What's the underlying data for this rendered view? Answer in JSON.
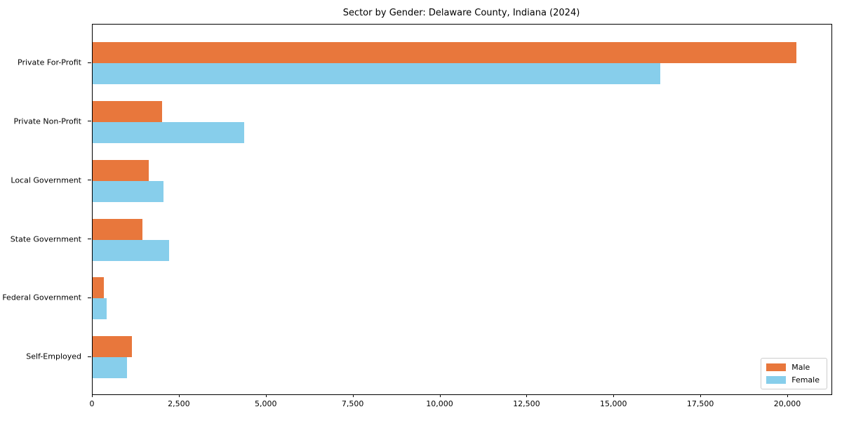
{
  "chart_data": {
    "type": "bar",
    "orientation": "horizontal",
    "title": "Sector by Gender: Delaware County, Indiana (2024)",
    "categories": [
      "Private For-Profit",
      "Private Non-Profit",
      "Local Government",
      "State Government",
      "Federal Government",
      "Self-Employed"
    ],
    "series": [
      {
        "name": "Male",
        "color": "#E8773C",
        "values": [
          20250,
          2000,
          1610,
          1430,
          320,
          1140
        ]
      },
      {
        "name": "Female",
        "color": "#87CEEB",
        "values": [
          16330,
          4350,
          2030,
          2200,
          400,
          980
        ]
      }
    ],
    "xlabel": "",
    "ylabel": "",
    "xlim": [
      0,
      21250
    ],
    "xticks": [
      0,
      2500,
      5000,
      7500,
      10000,
      12500,
      15000,
      17500,
      20000
    ],
    "xtick_labels": [
      "0",
      "2,500",
      "5,000",
      "7,500",
      "10,000",
      "12,500",
      "15,000",
      "17,500",
      "20,000"
    ],
    "grid": false,
    "legend": {
      "position": "lower right",
      "entries": [
        "Male",
        "Female"
      ]
    }
  }
}
